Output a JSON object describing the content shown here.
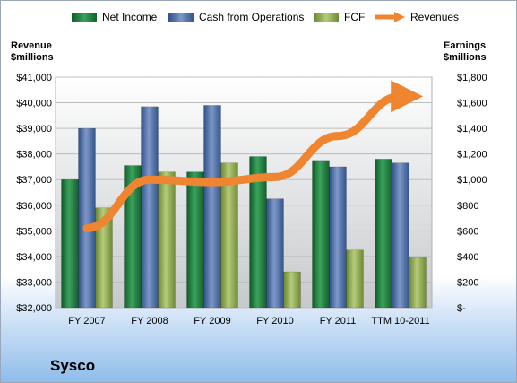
{
  "chart_data": {
    "type": "bar",
    "categories": [
      "FY 2007",
      "FY 2008",
      "FY 2009",
      "FY 2010",
      "FY 2011",
      "TTM 10-2011"
    ],
    "series": [
      {
        "name": "Net Income",
        "axis": "right",
        "values": [
          1000,
          1110,
          1060,
          1180,
          1150,
          1160
        ],
        "color": "#1f7a3c"
      },
      {
        "name": "Cash from Operations",
        "axis": "right",
        "values": [
          1400,
          1570,
          1580,
          850,
          1100,
          1130
        ],
        "color": "#4f6fa6"
      },
      {
        "name": "FCF",
        "axis": "right",
        "values": [
          780,
          1060,
          1130,
          280,
          450,
          390
        ],
        "color": "#8ca74a"
      },
      {
        "name": "Revenues",
        "axis": "left",
        "type": "line",
        "values": [
          35100,
          37000,
          36900,
          37100,
          38700,
          40250
        ],
        "color": "#ef8530"
      }
    ],
    "left_axis": {
      "title_line1": "Revenue",
      "title_line2": "$millions",
      "ylim": [
        32000,
        41000
      ],
      "ticks": [
        32000,
        33000,
        34000,
        35000,
        36000,
        37000,
        38000,
        39000,
        40000,
        41000
      ],
      "tick_labels": [
        "$32,000",
        "$33,000",
        "$34,000",
        "$35,000",
        "$36,000",
        "$37,000",
        "$38,000",
        "$39,000",
        "$40,000",
        "$41,000"
      ]
    },
    "right_axis": {
      "title_line1": "Earnings",
      "title_line2": "$millions",
      "ylim": [
        0,
        1800
      ],
      "ticks": [
        0,
        200,
        400,
        600,
        800,
        1000,
        1200,
        1400,
        1600,
        1800
      ],
      "tick_labels": [
        "$-",
        "$200",
        "$400",
        "$600",
        "$800",
        "$1,000",
        "$1,200",
        "$1,400",
        "$1,600",
        "$1,800"
      ]
    },
    "grid": true,
    "legend": "top",
    "company": "Sysco"
  }
}
